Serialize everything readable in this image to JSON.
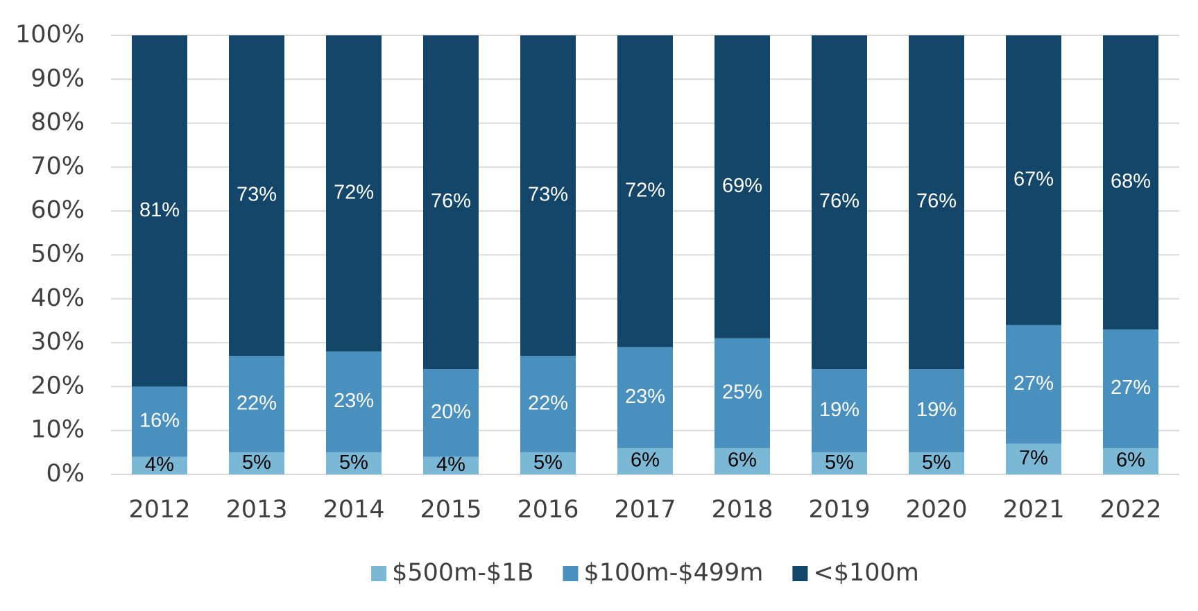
{
  "chart_data": {
    "type": "stacked_bar",
    "categories": [
      "2012",
      "2013",
      "2014",
      "2015",
      "2016",
      "2017",
      "2018",
      "2019",
      "2020",
      "2021",
      "2022"
    ],
    "series": [
      {
        "name": "$500m-$1B",
        "color": "#7ab8d6",
        "label_color": "#000000",
        "values": [
          4,
          5,
          5,
          4,
          5,
          6,
          6,
          5,
          5,
          7,
          6
        ],
        "value_labels": [
          "4%",
          "5%",
          "5%",
          "4%",
          "5%",
          "6%",
          "6%",
          "5%",
          "5%",
          "7%",
          "6%"
        ]
      },
      {
        "name": "$100m-$499m",
        "color": "#4a90bf",
        "label_color": "#ffffff",
        "values": [
          16,
          22,
          23,
          20,
          22,
          23,
          25,
          19,
          19,
          27,
          27
        ],
        "value_labels": [
          "16%",
          "22%",
          "23%",
          "20%",
          "22%",
          "23%",
          "25%",
          "19%",
          "19%",
          "27%",
          "27%"
        ]
      },
      {
        "name": "<$100m",
        "color": "#134668",
        "label_color": "#ffffff",
        "values": [
          81,
          73,
          72,
          76,
          73,
          72,
          69,
          76,
          76,
          67,
          68
        ],
        "value_labels": [
          "81%",
          "73%",
          "72%",
          "76%",
          "73%",
          "72%",
          "69%",
          "76%",
          "76%",
          "67%",
          "68%"
        ]
      }
    ],
    "ylim": [
      0,
      100
    ],
    "yticks": [
      {
        "value": 0,
        "label": "0%"
      },
      {
        "value": 10,
        "label": "10%"
      },
      {
        "value": 20,
        "label": "20%"
      },
      {
        "value": 30,
        "label": "30%"
      },
      {
        "value": 40,
        "label": "40%"
      },
      {
        "value": 50,
        "label": "50%"
      },
      {
        "value": 60,
        "label": "60%"
      },
      {
        "value": 70,
        "label": "70%"
      },
      {
        "value": 80,
        "label": "80%"
      },
      {
        "value": 90,
        "label": "90%"
      },
      {
        "value": 100,
        "label": "100%"
      }
    ],
    "grid": true,
    "legend": "bottom"
  }
}
